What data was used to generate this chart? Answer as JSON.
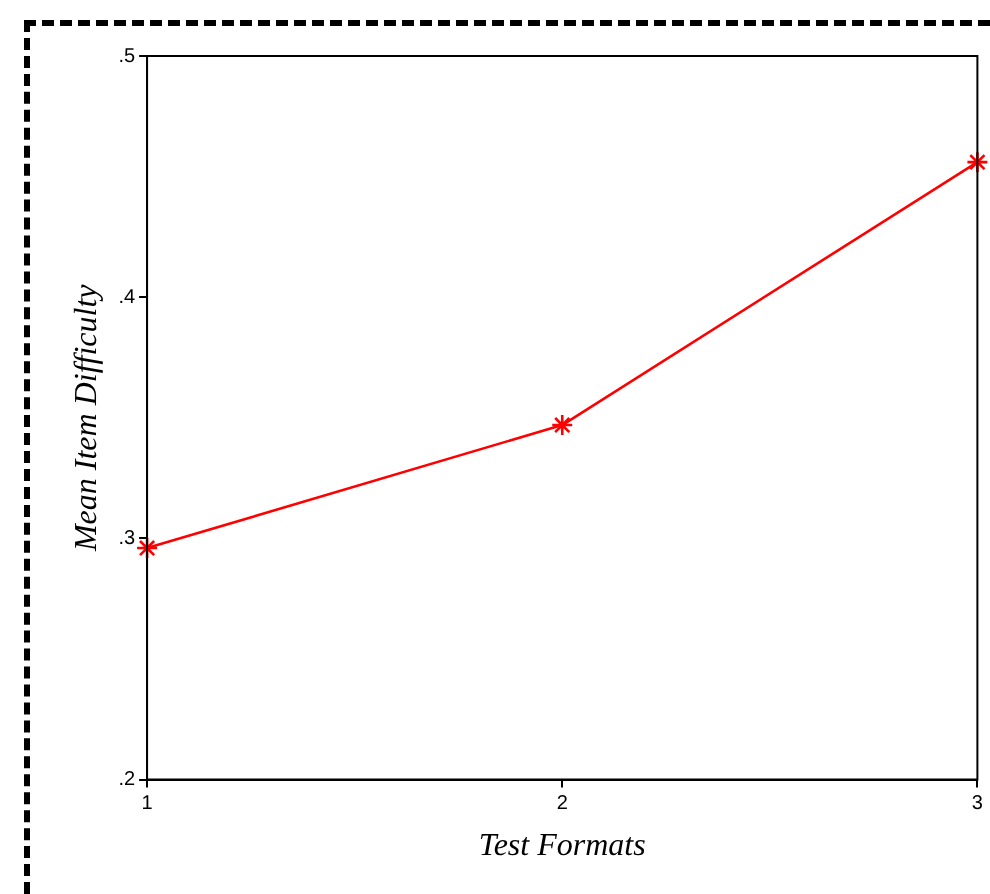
{
  "chart_data": {
    "type": "line",
    "xlabel": "Test Formats",
    "ylabel": "Mean Item Difficulty",
    "x": [
      1,
      2,
      3
    ],
    "series": [
      {
        "color": "#ff0000",
        "values": [
          0.296,
          0.347,
          0.456
        ]
      }
    ],
    "xlim": [
      1,
      3
    ],
    "xticks": [
      1,
      2,
      3
    ],
    "ylim": [
      0.2,
      0.5
    ],
    "yticks": [
      {
        "value": 0.2,
        "label": ".2"
      },
      {
        "value": 0.3,
        "label": ".3"
      },
      {
        "value": 0.4,
        "label": ".4"
      },
      {
        "value": 0.5,
        "label": ".5"
      }
    ],
    "grid": false,
    "legend": false,
    "marker": "cross",
    "line_style": "solid"
  }
}
